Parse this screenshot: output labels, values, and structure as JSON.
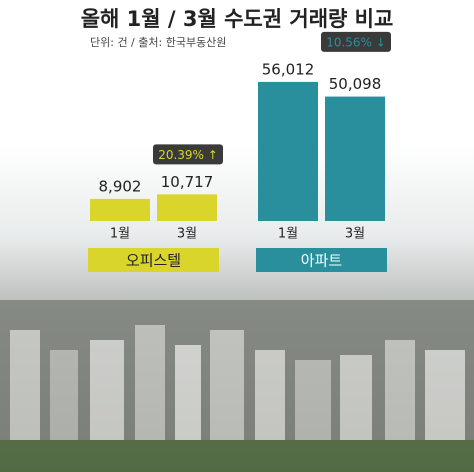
{
  "chart_data": {
    "type": "bar",
    "title": "올해 1월 / 3월 수도권 거래량 비교",
    "subtitle": "단위: 건 / 출처: 한국부동산원",
    "ylim": [
      0,
      60000
    ],
    "groups": [
      {
        "name": "오피스텔",
        "color": "#d9d52a",
        "categories": [
          "1월",
          "3월"
        ],
        "values": [
          8902,
          10717
        ],
        "value_labels": [
          "8,902",
          "10,717"
        ],
        "change": "20.39% ↑"
      },
      {
        "name": "아파트",
        "color": "#2a8f9c",
        "categories": [
          "1월",
          "3월"
        ],
        "values": [
          56012,
          50098
        ],
        "value_labels": [
          "56,012",
          "50,098"
        ],
        "change": "10.56% ↓"
      }
    ]
  }
}
